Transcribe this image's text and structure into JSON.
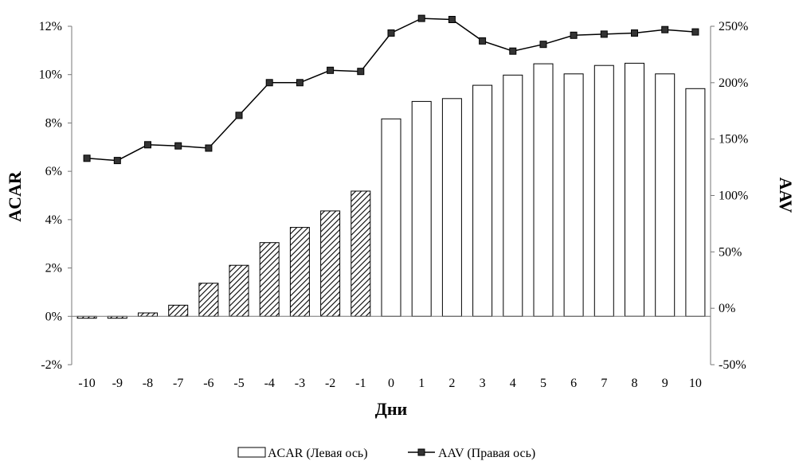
{
  "chart_data": {
    "type": "bar",
    "categories": [
      "-10",
      "-9",
      "-8",
      "-7",
      "-6",
      "-5",
      "-4",
      "-3",
      "-2",
      "-1",
      "0",
      "1",
      "2",
      "3",
      "4",
      "5",
      "6",
      "7",
      "8",
      "9",
      "10"
    ],
    "series": [
      {
        "name": "ACAR (Левая ось)",
        "type": "bar",
        "axis": "left",
        "values": [
          -0.0008,
          -0.0008,
          0.0014,
          0.0046,
          0.0137,
          0.0211,
          0.0305,
          0.0368,
          0.0436,
          0.0518,
          0.0817,
          0.0889,
          0.0901,
          0.0956,
          0.0998,
          0.1045,
          0.1003,
          0.1038,
          0.1047,
          0.1003,
          0.0942
        ],
        "hatched_categories": [
          "-10",
          "-9",
          "-8",
          "-7",
          "-6",
          "-5",
          "-4",
          "-3",
          "-2",
          "-1"
        ]
      },
      {
        "name": "AAV (Правая ось)",
        "type": "line",
        "axis": "right",
        "marker": "square",
        "values": [
          1.33,
          1.31,
          1.45,
          1.44,
          1.42,
          1.71,
          2.0,
          2.0,
          2.11,
          2.1,
          2.44,
          2.57,
          2.56,
          2.37,
          2.28,
          2.34,
          2.42,
          2.43,
          2.44,
          2.47,
          2.45
        ]
      }
    ],
    "xlabel": "Дни",
    "ylabel_left": "ACAR",
    "ylabel_right": "AAV",
    "ylim_left": [
      -0.02,
      0.12
    ],
    "ylim_right": [
      -0.5,
      2.5
    ],
    "yticks_left": [
      "-2%",
      "0%",
      "2%",
      "4%",
      "6%",
      "8%",
      "10%",
      "12%"
    ],
    "yticks_right": [
      "-50%",
      "0%",
      "50%",
      "100%",
      "150%",
      "200%",
      "250%"
    ],
    "grid": false,
    "legend_position": "bottom"
  }
}
